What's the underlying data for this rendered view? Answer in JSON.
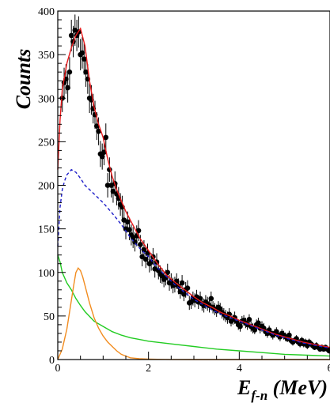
{
  "chart_data": {
    "type": "scatter",
    "title": "",
    "xlabel": {
      "main": "E",
      "sub": "f-n",
      "unit": " (MeV)"
    },
    "ylabel": "Counts",
    "xlim": [
      0,
      6
    ],
    "ylim": [
      0,
      400
    ],
    "xticks": [
      0,
      2,
      4,
      6
    ],
    "yticks": [
      0,
      50,
      100,
      150,
      200,
      250,
      300,
      350,
      400
    ],
    "grid": false,
    "legend": "none",
    "series": [
      {
        "kind": "points_with_errors",
        "color": "#000000",
        "x": [
          0.1,
          0.14,
          0.18,
          0.22,
          0.26,
          0.3,
          0.34,
          0.38,
          0.42,
          0.46,
          0.5,
          0.54,
          0.58,
          0.62,
          0.66,
          0.7,
          0.74,
          0.78,
          0.82,
          0.86,
          0.9,
          0.94,
          0.98,
          1.02,
          1.06,
          1.1,
          1.14,
          1.18,
          1.22,
          1.26,
          1.3,
          1.34,
          1.38,
          1.42,
          1.46,
          1.5,
          1.54,
          1.58,
          1.62,
          1.66,
          1.7,
          1.74,
          1.78,
          1.82,
          1.86,
          1.9,
          1.94,
          1.98,
          2.02,
          2.06,
          2.1,
          2.14,
          2.18,
          2.22,
          2.26,
          2.3,
          2.34,
          2.38,
          2.42,
          2.46,
          2.5,
          2.54,
          2.58,
          2.62,
          2.66,
          2.7,
          2.74,
          2.78,
          2.82,
          2.86,
          2.9,
          2.94,
          2.98,
          3.02,
          3.06,
          3.1,
          3.14,
          3.18,
          3.22,
          3.26,
          3.3,
          3.34,
          3.38,
          3.42,
          3.46,
          3.5,
          3.54,
          3.58,
          3.62,
          3.66,
          3.7,
          3.74,
          3.78,
          3.82,
          3.86,
          3.9,
          3.94,
          3.98,
          4.02,
          4.06,
          4.1,
          4.14,
          4.18,
          4.22,
          4.26,
          4.3,
          4.34,
          4.38,
          4.42,
          4.46,
          4.5,
          4.54,
          4.58,
          4.62,
          4.66,
          4.7,
          4.74,
          4.78,
          4.82,
          4.86,
          4.9,
          4.94,
          4.98,
          5.02,
          5.06,
          5.1,
          5.14,
          5.18,
          5.22,
          5.26,
          5.3,
          5.34,
          5.38,
          5.42,
          5.46,
          5.5,
          5.54,
          5.58,
          5.62,
          5.66,
          5.7,
          5.74,
          5.78,
          5.82,
          5.86,
          5.9,
          5.94,
          5.98
        ],
        "y": [
          300,
          318,
          322,
          312,
          330,
          372,
          365,
          378,
          372,
          376,
          350,
          352,
          345,
          330,
          322,
          300,
          298,
          288,
          281,
          268,
          262,
          236,
          233,
          238,
          255,
          200,
          218,
          200,
          193,
          202,
          190,
          185,
          178,
          175,
          160,
          150,
          158,
          149,
          143,
          140,
          135,
          142,
          148,
          132,
          118,
          126,
          115,
          122,
          110,
          112,
          118,
          104,
          112,
          102,
          98,
          96,
          92,
          94,
          100,
          88,
          90,
          85,
          86,
          90,
          84,
          78,
          88,
          75,
          80,
          82,
          65,
          66,
          70,
          68,
          72,
          66,
          70,
          64,
          62,
          66,
          64,
          62,
          70,
          60,
          58,
          56,
          60,
          58,
          54,
          52,
          50,
          48,
          52,
          44,
          46,
          48,
          44,
          40,
          38,
          44,
          45,
          42,
          40,
          46,
          38,
          36,
          34,
          40,
          42,
          36,
          38,
          36,
          32,
          30,
          34,
          30,
          28,
          30,
          32,
          28,
          26,
          30,
          28,
          26,
          24,
          28,
          22,
          20,
          22,
          24,
          20,
          18,
          22,
          18,
          20,
          16,
          20,
          18,
          16,
          14,
          16,
          14,
          12,
          14,
          12,
          14,
          12,
          10
        ],
        "err": [
          16,
          17,
          17,
          17,
          17,
          18,
          18,
          18,
          18,
          18,
          18,
          18,
          18,
          17,
          17,
          17,
          17,
          17,
          16,
          16,
          16,
          15,
          15,
          15,
          16,
          14,
          14,
          14,
          13,
          14,
          13,
          13,
          13,
          13,
          12,
          12,
          12,
          12,
          12,
          12,
          11,
          12,
          12,
          11,
          11,
          11,
          10,
          11,
          10,
          10,
          10,
          10,
          10,
          10,
          10,
          9,
          9,
          9,
          10,
          9,
          9,
          9,
          9,
          9,
          9,
          8,
          9,
          8,
          9,
          9,
          8,
          8,
          8,
          8,
          8,
          8,
          8,
          8,
          8,
          8,
          8,
          8,
          8,
          7,
          7,
          7,
          7,
          7,
          7,
          7,
          7,
          7,
          7,
          6,
          6,
          7,
          6,
          6,
          6,
          6,
          6,
          6,
          6,
          6,
          6,
          6,
          5,
          6,
          6,
          6,
          6,
          6,
          5,
          5,
          5,
          5,
          5,
          5,
          5,
          5,
          5,
          5,
          5,
          5,
          4,
          5,
          4,
          4,
          4,
          4,
          4,
          4,
          4,
          4,
          4,
          4,
          4,
          4,
          4,
          3,
          4,
          3,
          3,
          3,
          3,
          3,
          3,
          3
        ]
      },
      {
        "kind": "line",
        "color": "#e8191b",
        "dash": "",
        "x": [
          0,
          0.05,
          0.1,
          0.2,
          0.3,
          0.4,
          0.5,
          0.6,
          0.7,
          0.8,
          0.9,
          1.0,
          1.1,
          1.2,
          1.3,
          1.4,
          1.5,
          1.6,
          1.7,
          1.8,
          2.0,
          2.2,
          2.4,
          2.6,
          2.8,
          3.0,
          3.2,
          3.4,
          3.6,
          3.8,
          4.0,
          4.2,
          4.4,
          4.6,
          4.8,
          5.0,
          5.2,
          5.4,
          5.6,
          5.8,
          6.0
        ],
        "y": [
          218,
          275,
          310,
          340,
          358,
          372,
          380,
          360,
          320,
          290,
          270,
          255,
          230,
          210,
          195,
          182,
          170,
          160,
          150,
          140,
          125,
          110,
          97,
          88,
          80,
          72,
          65,
          60,
          54,
          50,
          45,
          41,
          37,
          33,
          29,
          26,
          23,
          20,
          18,
          16,
          14
        ]
      },
      {
        "kind": "line",
        "color": "#1d1dc8",
        "dash": "4,3",
        "x": [
          0,
          0.05,
          0.1,
          0.15,
          0.2,
          0.3,
          0.4,
          0.5,
          0.6,
          0.8,
          1.0,
          1.2,
          1.4,
          1.6,
          1.8,
          2.0,
          2.2,
          2.4,
          2.6,
          2.8,
          3.0,
          3.2,
          3.4,
          3.6,
          3.8,
          4.0,
          4.2,
          4.4,
          4.6,
          4.8,
          5.0,
          5.2,
          5.4,
          5.6,
          5.8,
          6.0
        ],
        "y": [
          130,
          175,
          195,
          205,
          212,
          218,
          215,
          208,
          200,
          190,
          180,
          168,
          155,
          140,
          128,
          118,
          105,
          95,
          85,
          77,
          69,
          63,
          57,
          52,
          48,
          44,
          40,
          36,
          32,
          28,
          25,
          22,
          19,
          17,
          15,
          13
        ]
      },
      {
        "kind": "line",
        "color": "#22cc22",
        "dash": "",
        "x": [
          0,
          0.05,
          0.1,
          0.2,
          0.3,
          0.4,
          0.5,
          0.6,
          0.8,
          1.0,
          1.2,
          1.4,
          1.6,
          1.8,
          2.0,
          2.5,
          3.0,
          3.5,
          4.0,
          4.5,
          5.0,
          5.5,
          6.0
        ],
        "y": [
          120,
          112,
          100,
          88,
          80,
          70,
          62,
          55,
          44,
          38,
          32,
          28,
          25,
          23,
          21,
          18,
          15,
          12,
          10,
          8,
          6,
          5,
          4
        ]
      },
      {
        "kind": "line",
        "color": "#f28c1f",
        "dash": "",
        "x": [
          0,
          0.1,
          0.2,
          0.3,
          0.35,
          0.4,
          0.45,
          0.5,
          0.55,
          0.6,
          0.7,
          0.8,
          0.9,
          1.0,
          1.1,
          1.2,
          1.3,
          1.4,
          1.5,
          1.6,
          1.8,
          2.0,
          2.2,
          2.5,
          3.0,
          4.0,
          5.0,
          6.0
        ],
        "y": [
          0,
          12,
          35,
          68,
          85,
          100,
          105,
          102,
          95,
          85,
          65,
          48,
          36,
          27,
          20,
          15,
          10,
          6,
          4,
          2,
          1,
          0.5,
          0.3,
          0.1,
          0,
          0,
          0,
          0
        ]
      }
    ]
  }
}
